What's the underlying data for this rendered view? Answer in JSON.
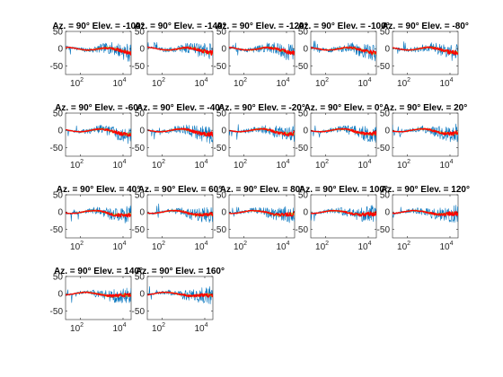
{
  "chart_data": {
    "type": "line",
    "x_scale": "log",
    "xlim": [
      20,
      24000
    ],
    "ylim": [
      -75,
      50
    ],
    "x_ticks": [
      {
        "base": "10",
        "exp": "2",
        "value": 100
      },
      {
        "base": "10",
        "exp": "4",
        "value": 10000
      }
    ],
    "y_ticks": [
      {
        "label": "50",
        "value": 50
      },
      {
        "label": "0",
        "value": 0
      },
      {
        "label": "-50",
        "value": -50
      }
    ],
    "series_colors": [
      "#0072bd",
      "#d95319",
      "#edb120",
      "#77ac30",
      "#ff0000"
    ],
    "grid": false,
    "legend": "none",
    "panels": [
      {
        "title": "Az. = 90° Elev. = -100°"
      },
      {
        "title": "Az. = 90° Elev. = -140°"
      },
      {
        "title": "Az. = 90° Elev. = -120°"
      },
      {
        "title": "Az. = 90° Elev. = -100°"
      },
      {
        "title": "Az. = 90° Elev. = -80°"
      },
      {
        "title": "Az. = 90° Elev. = -60°"
      },
      {
        "title": "Az. = 90° Elev. = -40°"
      },
      {
        "title": "Az. = 90° Elev. = -20°"
      },
      {
        "title": "Az. = 90° Elev. = 0°"
      },
      {
        "title": "Az. = 90° Elev. = 20°"
      },
      {
        "title": "Az. = 90° Elev. = 40°"
      },
      {
        "title": "Az. = 90° Elev. = 60°"
      },
      {
        "title": "Az. = 90° Elev. = 80°"
      },
      {
        "title": "Az. = 90° Elev. = 100°"
      },
      {
        "title": "Az. = 90° Elev. = 120°"
      },
      {
        "title": "Az. = 90° Elev. = 140°"
      },
      {
        "title": "Az. = 90° Elev. = 160°"
      }
    ]
  }
}
